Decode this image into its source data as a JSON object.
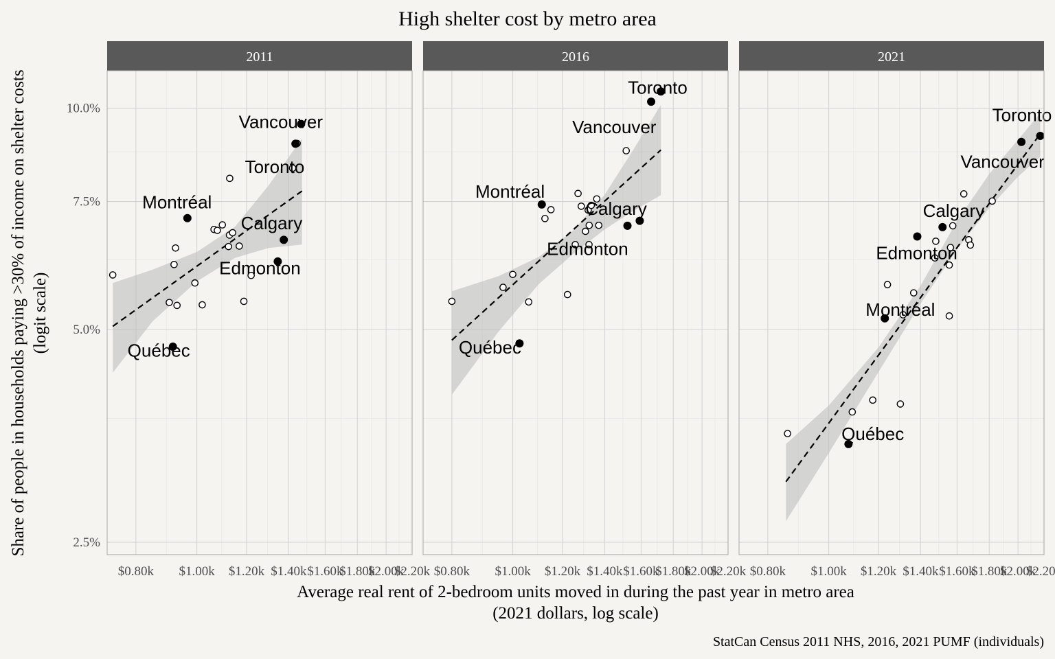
{
  "chart_data": {
    "type": "scatter",
    "title": "High shelter cost by metro area",
    "xlabel": "Average real rent of 2-bedroom units moved in during the past year in metro area",
    "xlabel_sub": "(2021 dollars, log scale)",
    "ylabel": "Share of people in households paying >30% of income on shelter costs",
    "ylabel_sub": "(logit scale)",
    "caption": "StatCan Census 2011 NHS, 2016, 2021 PUMF (individuals)",
    "x_scale": "log",
    "y_scale": "logit",
    "xlim": [
      720,
      2200
    ],
    "ylim": [
      0.024,
      0.112
    ],
    "x_ticks": [
      {
        "value": 800,
        "label": "$0.80k"
      },
      {
        "value": 1000,
        "label": "$1.00k"
      },
      {
        "value": 1200,
        "label": "$1.20k"
      },
      {
        "value": 1400,
        "label": "$1.40k"
      },
      {
        "value": 1600,
        "label": "$1.60k"
      },
      {
        "value": 1800,
        "label": "$1.80k"
      },
      {
        "value": 2000,
        "label": "$2.00k"
      },
      {
        "value": 2200,
        "label": "$2.20k"
      }
    ],
    "y_ticks": [
      {
        "value": 0.025,
        "label": "2.5%"
      },
      {
        "value": 0.05,
        "label": "5.0%"
      },
      {
        "value": 0.075,
        "label": "7.5%"
      },
      {
        "value": 0.1,
        "label": "10.0%"
      }
    ],
    "grid": true,
    "facets": [
      {
        "label": "2011",
        "trend": {
          "x": [
            735,
            1470
          ],
          "y": [
            0.0505,
            0.0775
          ]
        },
        "band": {
          "x": [
            735,
            850,
            1000,
            1150,
            1300,
            1470
          ],
          "lower": [
            0.0435,
            0.0513,
            0.0583,
            0.0628,
            0.0648,
            0.0655
          ],
          "upper": [
            0.058,
            0.0605,
            0.064,
            0.0693,
            0.0788,
            0.0912
          ]
        },
        "points": [
          {
            "x": 735,
            "y": 0.0595,
            "filled": false
          },
          {
            "x": 904,
            "y": 0.0545,
            "filled": false
          },
          {
            "x": 920,
            "y": 0.0615,
            "filled": false
          },
          {
            "x": 925,
            "y": 0.0648,
            "filled": false
          },
          {
            "x": 930,
            "y": 0.054,
            "filled": false
          },
          {
            "x": 993,
            "y": 0.058,
            "filled": false
          },
          {
            "x": 1020,
            "y": 0.0541,
            "filled": false
          },
          {
            "x": 1065,
            "y": 0.0687,
            "filled": false
          },
          {
            "x": 1078,
            "y": 0.0685,
            "filled": false
          },
          {
            "x": 1098,
            "y": 0.0697,
            "filled": false
          },
          {
            "x": 1123,
            "y": 0.0651,
            "filled": false
          },
          {
            "x": 1127,
            "y": 0.0675,
            "filled": false
          },
          {
            "x": 1128,
            "y": 0.0806,
            "filled": false
          },
          {
            "x": 1140,
            "y": 0.068,
            "filled": false
          },
          {
            "x": 1168,
            "y": 0.0652,
            "filled": false
          },
          {
            "x": 1188,
            "y": 0.0547,
            "filled": false
          },
          {
            "x": 1220,
            "y": 0.0594,
            "filled": false
          },
          {
            "x": 1420,
            "y": 0.0832,
            "filled": false
          },
          {
            "x": 1444,
            "y": 0.0898,
            "filled": false
          },
          {
            "x": 1465,
            "y": 0.0953,
            "filled": true,
            "name": "Vancouver"
          },
          {
            "x": 1435,
            "y": 0.0897,
            "filled": true,
            "name": "Toronto"
          },
          {
            "x": 966,
            "y": 0.0712,
            "filled": true,
            "name": "Montréal"
          },
          {
            "x": 1375,
            "y": 0.0665,
            "filled": true,
            "name": "Calgary"
          },
          {
            "x": 1345,
            "y": 0.0621,
            "filled": true,
            "name": "Edmonton"
          },
          {
            "x": 916,
            "y": 0.0473,
            "filled": true,
            "name": "Québec"
          }
        ],
        "labels": [
          {
            "text": "Vancouver",
            "x": 1360,
            "y": 0.0955
          },
          {
            "text": "Toronto",
            "x": 1330,
            "y": 0.0832
          },
          {
            "text": "Montréal",
            "x": 930,
            "y": 0.0745
          },
          {
            "text": "Calgary",
            "x": 1315,
            "y": 0.0698
          },
          {
            "text": "Edmonton",
            "x": 1260,
            "y": 0.0605
          },
          {
            "text": "Québec",
            "x": 870,
            "y": 0.0465
          }
        ]
      },
      {
        "label": "2016",
        "trend": {
          "x": [
            800,
            1720
          ],
          "y": [
            0.0483,
            0.088
          ]
        },
        "band": {
          "x": [
            800,
            950,
            1100,
            1250,
            1400,
            1550,
            1720
          ],
          "lower": [
            0.0405,
            0.0497,
            0.0578,
            0.0637,
            0.0687,
            0.0727,
            0.0765
          ],
          "upper": [
            0.0565,
            0.0593,
            0.063,
            0.0686,
            0.0766,
            0.0877,
            0.101
          ]
        },
        "points": [
          {
            "x": 800,
            "y": 0.0547,
            "filled": false
          },
          {
            "x": 965,
            "y": 0.0572,
            "filled": false
          },
          {
            "x": 1000,
            "y": 0.0596,
            "filled": false
          },
          {
            "x": 1060,
            "y": 0.0546,
            "filled": false
          },
          {
            "x": 1125,
            "y": 0.0711,
            "filled": false
          },
          {
            "x": 1150,
            "y": 0.0731,
            "filled": false
          },
          {
            "x": 1222,
            "y": 0.0559,
            "filled": false
          },
          {
            "x": 1257,
            "y": 0.0655,
            "filled": false
          },
          {
            "x": 1270,
            "y": 0.0769,
            "filled": false
          },
          {
            "x": 1285,
            "y": 0.0739,
            "filled": false
          },
          {
            "x": 1305,
            "y": 0.0683,
            "filled": false
          },
          {
            "x": 1318,
            "y": 0.073,
            "filled": false
          },
          {
            "x": 1322,
            "y": 0.0655,
            "filled": false
          },
          {
            "x": 1323,
            "y": 0.0696,
            "filled": false
          },
          {
            "x": 1333,
            "y": 0.0741,
            "filled": false
          },
          {
            "x": 1360,
            "y": 0.0756,
            "filled": false
          },
          {
            "x": 1370,
            "y": 0.0696,
            "filled": false
          },
          {
            "x": 1515,
            "y": 0.0878,
            "filled": false
          },
          {
            "x": 1720,
            "y": 0.1052,
            "filled": true,
            "name": "Toronto"
          },
          {
            "x": 1660,
            "y": 0.102,
            "filled": true,
            "name": "Vancouver"
          },
          {
            "x": 1112,
            "y": 0.0743,
            "filled": true,
            "name": "Montréal"
          },
          {
            "x": 1592,
            "y": 0.0706,
            "filled": true,
            "name": "Calgary"
          },
          {
            "x": 1522,
            "y": 0.0695,
            "filled": true,
            "name": "Edmonton"
          },
          {
            "x": 1025,
            "y": 0.0478,
            "filled": true,
            "name": "Québec"
          }
        ],
        "labels": [
          {
            "text": "Toronto",
            "x": 1700,
            "y": 0.106
          },
          {
            "text": "Vancouver",
            "x": 1450,
            "y": 0.094
          },
          {
            "text": "Montréal",
            "x": 990,
            "y": 0.077
          },
          {
            "text": "Calgary",
            "x": 1460,
            "y": 0.073
          },
          {
            "text": "Edmonton",
            "x": 1315,
            "y": 0.0643
          },
          {
            "text": "Québec",
            "x": 920,
            "y": 0.047
          }
        ]
      },
      {
        "label": "2021",
        "trend": {
          "x": [
            855,
            2170
          ],
          "y": [
            0.0305,
            0.0925
          ]
        },
        "band": {
          "x": [
            855,
            1000,
            1200,
            1400,
            1600,
            1800,
            2000,
            2170
          ],
          "lower": [
            0.0268,
            0.0335,
            0.0436,
            0.0543,
            0.0645,
            0.0735,
            0.081,
            0.0862
          ],
          "upper": [
            0.0345,
            0.0391,
            0.0472,
            0.0575,
            0.0706,
            0.0817,
            0.0908,
            0.0985
          ]
        },
        "points": [
          {
            "x": 860,
            "y": 0.0357,
            "filled": false
          },
          {
            "x": 1090,
            "y": 0.0383,
            "filled": false
          },
          {
            "x": 1175,
            "y": 0.0398,
            "filled": false
          },
          {
            "x": 1240,
            "y": 0.0577,
            "filled": false
          },
          {
            "x": 1300,
            "y": 0.0393,
            "filled": false
          },
          {
            "x": 1313,
            "y": 0.0524,
            "filled": false
          },
          {
            "x": 1365,
            "y": 0.0562,
            "filled": false
          },
          {
            "x": 1475,
            "y": 0.0628,
            "filled": false
          },
          {
            "x": 1480,
            "y": 0.0662,
            "filled": false
          },
          {
            "x": 1555,
            "y": 0.0614,
            "filled": false
          },
          {
            "x": 1555,
            "y": 0.0522,
            "filled": false
          },
          {
            "x": 1562,
            "y": 0.0649,
            "filled": false
          },
          {
            "x": 1575,
            "y": 0.0695,
            "filled": false
          },
          {
            "x": 1640,
            "y": 0.0768,
            "filled": false
          },
          {
            "x": 1670,
            "y": 0.0665,
            "filled": false
          },
          {
            "x": 1680,
            "y": 0.0654,
            "filled": false
          },
          {
            "x": 1820,
            "y": 0.0751,
            "filled": false
          },
          {
            "x": 2170,
            "y": 0.0919,
            "filled": true,
            "name": "Toronto"
          },
          {
            "x": 2025,
            "y": 0.0902,
            "filled": true,
            "name": "Vancouver"
          },
          {
            "x": 1228,
            "y": 0.0518,
            "filled": true,
            "name": "Montréal"
          },
          {
            "x": 1517,
            "y": 0.0692,
            "filled": true,
            "name": "Calgary"
          },
          {
            "x": 1383,
            "y": 0.0672,
            "filled": true,
            "name": "Edmonton"
          },
          {
            "x": 1075,
            "y": 0.0345,
            "filled": true,
            "name": "Québec"
          }
        ],
        "labels": [
          {
            "text": "Toronto",
            "x": 2030,
            "y": 0.0975
          },
          {
            "text": "Vancouver",
            "x": 1890,
            "y": 0.0845
          },
          {
            "text": "Calgary",
            "x": 1580,
            "y": 0.0725
          },
          {
            "text": "Edmonton",
            "x": 1380,
            "y": 0.0635
          },
          {
            "text": "Montréal",
            "x": 1300,
            "y": 0.053
          },
          {
            "text": "Québec",
            "x": 1175,
            "y": 0.0355
          }
        ]
      }
    ]
  }
}
